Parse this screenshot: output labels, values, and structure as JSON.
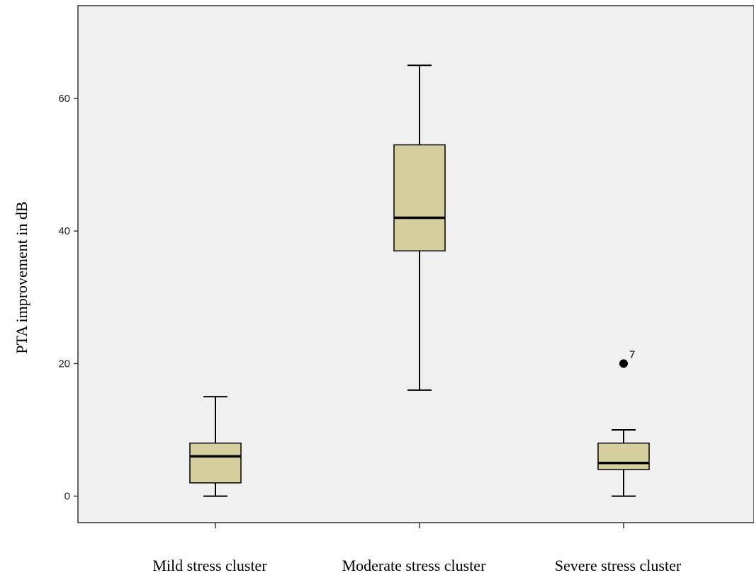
{
  "chart_data": {
    "type": "boxplot",
    "ylabel": "PTA improvement in dB",
    "xlabel": "",
    "ylim": [
      -4,
      74
    ],
    "yticks": [
      0,
      20,
      40,
      60
    ],
    "grid": false,
    "colors": {
      "plot_background": "#f0f0f0",
      "box_fill": "#d5cf9d",
      "stroke": "#000000"
    },
    "categories": [
      "Mild stress cluster",
      "Moderate stress cluster",
      "Severe stress cluster"
    ],
    "boxes": [
      {
        "category": "Mild stress cluster",
        "min": 0,
        "q1": 2,
        "median": 6,
        "q3": 8,
        "max": 15,
        "outliers": []
      },
      {
        "category": "Moderate stress cluster",
        "min": 16,
        "q1": 37,
        "median": 42,
        "q3": 53,
        "max": 65,
        "outliers": []
      },
      {
        "category": "Severe stress cluster",
        "min": 0,
        "q1": 4,
        "median": 5,
        "q3": 8,
        "max": 10,
        "outliers": [
          {
            "value": 20,
            "label": "7"
          }
        ]
      }
    ]
  }
}
